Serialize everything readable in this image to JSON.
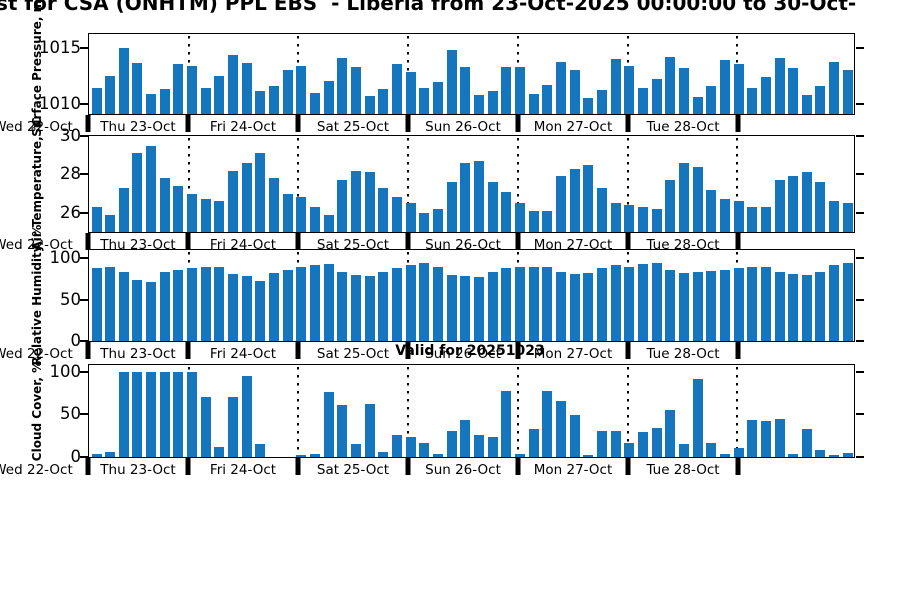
{
  "title": "st for CSA (ONHTM) PPL EBS  - Liberia from 23-Oct-2025 00:00:00 to 30-Oct-",
  "annotations": {
    "valid_for": "Valid for 20251023"
  },
  "colors": {
    "bar_fill": "#1576bd",
    "axis": "#000000"
  },
  "x_axis": {
    "left_day_label": "Wed 22-Oct",
    "day_labels": [
      "Thu 23-Oct",
      "Fri 24-Oct",
      "Sat 25-Oct",
      "Sun 26-Oct",
      "Mon 27-Oct",
      "Tue 28-Oct"
    ],
    "bars_per_day": 8,
    "x_description": "3-hourly forecast bins, Thu 23-Oct through Wed 29-Oct"
  },
  "chart_data": [
    {
      "type": "bar",
      "panel": "surface-pressure",
      "ylabel": "Surface Pressure, mb",
      "yticks": [
        1010,
        1015
      ],
      "ylim": [
        1009.1,
        1016.2
      ],
      "values": [
        1011.4,
        1012.5,
        1015.0,
        1013.6,
        1010.9,
        1011.3,
        1013.5,
        1013.4,
        1011.4,
        1012.5,
        1014.3,
        1013.6,
        1011.1,
        1011.6,
        1013.0,
        1013.4,
        1011.0,
        1012.0,
        1014.1,
        1013.3,
        1010.7,
        1011.3,
        1013.5,
        1012.8,
        1011.4,
        1011.9,
        1014.8,
        1013.3,
        1010.8,
        1011.1,
        1013.3,
        1013.3,
        1010.9,
        1011.7,
        1013.7,
        1013.0,
        1010.5,
        1011.2,
        1014.0,
        1013.4,
        1011.4,
        1012.2,
        1014.2,
        1013.2,
        1010.6,
        1011.6,
        1013.9,
        1013.5,
        1011.4,
        1012.4,
        1014.1,
        1013.2,
        1010.8,
        1011.6,
        1013.7,
        1013.0
      ]
    },
    {
      "type": "bar",
      "panel": "air-temperature",
      "ylabel": "Air Temperature, °C",
      "yticks": [
        26,
        28,
        30
      ],
      "ylim": [
        25.0,
        30.0
      ],
      "values": [
        26.3,
        25.9,
        27.3,
        29.1,
        29.5,
        27.8,
        27.4,
        27.0,
        26.7,
        26.6,
        28.2,
        28.6,
        29.1,
        27.8,
        27.0,
        26.8,
        26.3,
        25.9,
        27.7,
        28.2,
        28.1,
        27.3,
        26.8,
        26.5,
        26.0,
        26.2,
        27.6,
        28.6,
        28.7,
        27.6,
        27.1,
        26.5,
        26.1,
        26.1,
        27.9,
        28.3,
        28.5,
        27.3,
        26.5,
        26.4,
        26.3,
        26.2,
        27.7,
        28.6,
        28.4,
        27.2,
        26.7,
        26.6,
        26.3,
        26.3,
        27.7,
        27.9,
        28.1,
        27.6,
        26.6,
        26.5
      ]
    },
    {
      "type": "bar",
      "panel": "relative-humidity",
      "ylabel": "Relative Humidity, %",
      "yticks": [
        0,
        50,
        100
      ],
      "ylim": [
        0,
        110
      ],
      "values": [
        88,
        90,
        84,
        74,
        71,
        83,
        86,
        88,
        89,
        90,
        81,
        79,
        73,
        82,
        86,
        90,
        92,
        93,
        83,
        80,
        79,
        84,
        88,
        92,
        94,
        89,
        80,
        78,
        77,
        83,
        88,
        90,
        90,
        90,
        83,
        81,
        82,
        88,
        92,
        90,
        93,
        94,
        86,
        82,
        83,
        85,
        86,
        88,
        90,
        90,
        83,
        81,
        80,
        84,
        92,
        94
      ]
    },
    {
      "type": "bar",
      "panel": "cloud-cover",
      "ylabel": "Cloud Cover, %",
      "yticks": [
        0,
        50,
        100
      ],
      "ylim": [
        0,
        108
      ],
      "values": [
        3,
        6,
        100,
        100,
        100,
        100,
        100,
        100,
        71,
        12,
        71,
        95,
        15,
        0,
        0,
        2,
        4,
        76,
        61,
        15,
        62,
        6,
        26,
        23,
        17,
        3,
        31,
        44,
        26,
        23,
        78,
        3,
        33,
        77,
        66,
        49,
        2,
        31,
        30,
        16,
        29,
        34,
        55,
        15,
        92,
        17,
        3,
        11,
        44,
        42,
        45,
        3,
        33,
        8,
        2,
        5
      ]
    }
  ]
}
